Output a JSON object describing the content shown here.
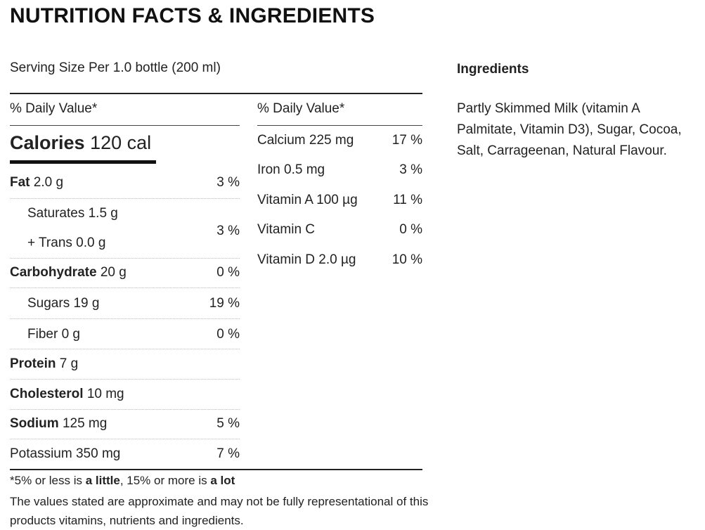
{
  "title": "NUTRITION FACTS & INGREDIENTS",
  "serving": "Serving Size Per 1.0 bottle (200 ml)",
  "daily_value_label": "% Daily Value*",
  "calories": {
    "label": "Calories",
    "value": "120 cal"
  },
  "nutrients": [
    {
      "name": "Fat",
      "amount": "2.0 g",
      "pct": "3 %"
    },
    {
      "name": "Saturates 1.5 g"
    },
    {
      "name": "+ Trans 0.0 g",
      "pct": "3 %"
    },
    {
      "name": "Carbohydrate",
      "amount": "20 g",
      "pct": "0 %"
    },
    {
      "name": "Sugars 19 g",
      "pct": "19 %"
    },
    {
      "name": "Fiber 0 g",
      "pct": "0 %"
    },
    {
      "name": "Protein",
      "amount": "7 g"
    },
    {
      "name": "Cholesterol",
      "amount": "10 mg"
    },
    {
      "name": "Sodium",
      "amount": "125 mg",
      "pct": "5 %"
    },
    {
      "name": "Potassium 350 mg",
      "pct": "7 %"
    }
  ],
  "vitamins": [
    {
      "name": "Calcium 225 mg",
      "pct": "17 %"
    },
    {
      "name": "Iron 0.5 mg",
      "pct": "3 %"
    },
    {
      "name": "Vitamin A 100 µg",
      "pct": "11 %"
    },
    {
      "name": "Vitamin C",
      "pct": "0 %"
    },
    {
      "name": "Vitamin D 2.0 µg",
      "pct": "10 %"
    }
  ],
  "footnote": {
    "prefix": "*5% or less is ",
    "little": "a little",
    "middle": ", 15% or more is ",
    "lot": "a lot",
    "disclaimer": "The values stated are approximate and may not be fully representational of this products vitamins, nutrients and ingredients."
  },
  "ingredients": {
    "title": "Ingredients",
    "text": "Partly Skimmed Milk (vitamin A Palmitate, Vitamin D3), Sugar, Cocoa, Salt, Carrageenan, Natural Flavour."
  }
}
